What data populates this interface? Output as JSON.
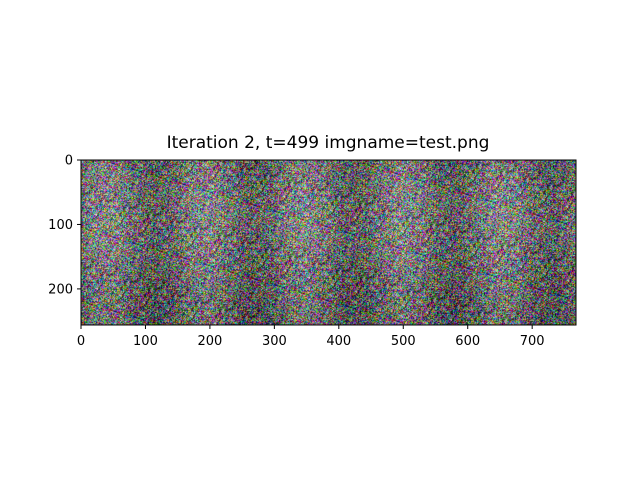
{
  "chart_data": {
    "type": "heatmap",
    "title": "Iteration 2, t=499 imgname=test.png",
    "xlabel": "",
    "ylabel": "",
    "xlim": [
      0,
      768
    ],
    "ylim": [
      256,
      0
    ],
    "xticks": [
      0,
      100,
      200,
      300,
      400,
      500,
      600,
      700
    ],
    "yticks": [
      0,
      100,
      200
    ],
    "image": {
      "description_kind": "rgb noise image",
      "pixels_wide": 768,
      "pixels_high": 256
    },
    "grid": false
  }
}
